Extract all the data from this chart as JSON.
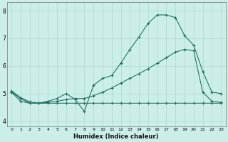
{
  "xlabel": "Humidex (Indice chaleur)",
  "xlim": [
    -0.5,
    23.5
  ],
  "ylim": [
    3.8,
    8.3
  ],
  "yticks": [
    4,
    5,
    6,
    7,
    8
  ],
  "xticks": [
    0,
    1,
    2,
    3,
    4,
    5,
    6,
    7,
    8,
    9,
    10,
    11,
    12,
    13,
    14,
    15,
    16,
    17,
    18,
    19,
    20,
    21,
    22,
    23
  ],
  "bg_color": "#cceee8",
  "grid_color": "#aad8d0",
  "line_color": "#1a6b5a",
  "series": [
    {
      "x": [
        0,
        1,
        2,
        3,
        4,
        5,
        6,
        7,
        8,
        9,
        10,
        11,
        12,
        13,
        14,
        15,
        16,
        17,
        18,
        19,
        20,
        21,
        22,
        23
      ],
      "y": [
        5.1,
        4.85,
        4.7,
        4.65,
        4.72,
        4.82,
        5.0,
        4.78,
        4.35,
        5.3,
        5.55,
        5.65,
        6.1,
        6.6,
        7.05,
        7.55,
        7.85,
        7.85,
        7.75,
        7.1,
        6.75,
        5.8,
        5.05,
        5.0
      ]
    },
    {
      "x": [
        0,
        1,
        2,
        3,
        4,
        5,
        6,
        7,
        8,
        9,
        10,
        11,
        12,
        13,
        14,
        15,
        16,
        17,
        18,
        19,
        20,
        21,
        22,
        23
      ],
      "y": [
        5.05,
        4.82,
        4.65,
        4.65,
        4.68,
        4.72,
        4.78,
        4.82,
        4.82,
        4.92,
        5.05,
        5.2,
        5.38,
        5.55,
        5.72,
        5.9,
        6.1,
        6.3,
        6.5,
        6.6,
        6.55,
        5.05,
        4.72,
        4.68
      ]
    },
    {
      "x": [
        0,
        1,
        2,
        3,
        4,
        5,
        6,
        7,
        8,
        9,
        10,
        11,
        12,
        13,
        14,
        15,
        16,
        17,
        18,
        19,
        20,
        21,
        22,
        23
      ],
      "y": [
        5.05,
        4.72,
        4.65,
        4.65,
        4.65,
        4.65,
        4.65,
        4.65,
        4.65,
        4.65,
        4.65,
        4.65,
        4.65,
        4.65,
        4.65,
        4.65,
        4.65,
        4.65,
        4.65,
        4.65,
        4.65,
        4.65,
        4.65,
        4.65
      ]
    }
  ]
}
